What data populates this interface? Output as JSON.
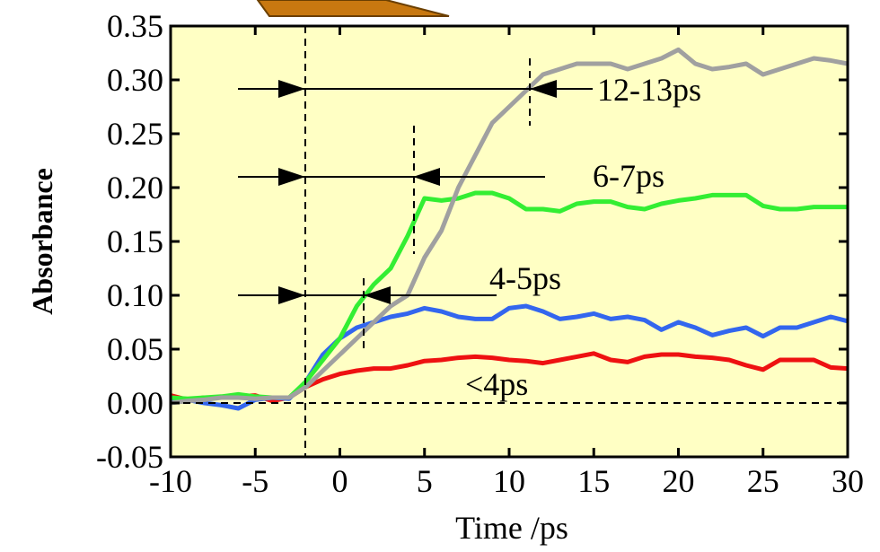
{
  "chart_data": {
    "type": "line",
    "x_label": "Time /ps",
    "y_label": "Absorbance",
    "annotations": [
      "12-13ps",
      "6-7ps",
      "4-5ps",
      "<4ps"
    ],
    "x": [
      -10,
      -9,
      -8,
      -7,
      -6,
      -5,
      -4,
      -3,
      -2,
      -1,
      0,
      1,
      2,
      3,
      4,
      5,
      6,
      7,
      8,
      9,
      10,
      11,
      12,
      13,
      14,
      15,
      16,
      17,
      18,
      19,
      20,
      21,
      22,
      23,
      24,
      25,
      26,
      27,
      28,
      29,
      30
    ],
    "series": [
      {
        "color": "#a0a0a0",
        "values": [
          0.0,
          0.002,
          0.003,
          0.005,
          0.005,
          0.004,
          0.005,
          0.005,
          0.015,
          0.03,
          0.045,
          0.06,
          0.075,
          0.09,
          0.1,
          0.135,
          0.16,
          0.2,
          0.23,
          0.26,
          0.275,
          0.29,
          0.305,
          0.31,
          0.315,
          0.315,
          0.315,
          0.31,
          0.315,
          0.32,
          0.328,
          0.315,
          0.31,
          0.312,
          0.315,
          0.305,
          0.31,
          0.315,
          0.32,
          0.318,
          0.315
        ]
      },
      {
        "color": "#33ee33",
        "values": [
          0.005,
          0.004,
          0.005,
          0.006,
          0.008,
          0.006,
          0.005,
          0.005,
          0.02,
          0.04,
          0.06,
          0.09,
          0.11,
          0.125,
          0.155,
          0.19,
          0.188,
          0.19,
          0.195,
          0.195,
          0.19,
          0.18,
          0.18,
          0.178,
          0.185,
          0.187,
          0.187,
          0.182,
          0.18,
          0.185,
          0.188,
          0.19,
          0.193,
          0.193,
          0.193,
          0.183,
          0.18,
          0.18,
          0.182,
          0.182,
          0.182
        ]
      },
      {
        "color": "#3366ee",
        "values": [
          0.003,
          0.003,
          0.0,
          -0.002,
          -0.005,
          0.003,
          0.005,
          0.004,
          0.02,
          0.045,
          0.06,
          0.07,
          0.075,
          0.08,
          0.083,
          0.088,
          0.085,
          0.08,
          0.078,
          0.078,
          0.088,
          0.09,
          0.085,
          0.078,
          0.08,
          0.083,
          0.078,
          0.08,
          0.077,
          0.068,
          0.075,
          0.07,
          0.063,
          0.067,
          0.07,
          0.062,
          0.07,
          0.07,
          0.075,
          0.08,
          0.076
        ]
      },
      {
        "color": "#ee1111",
        "values": [
          0.007,
          0.003,
          0.005,
          0.005,
          0.006,
          0.007,
          0.002,
          0.005,
          0.015,
          0.022,
          0.027,
          0.03,
          0.032,
          0.032,
          0.035,
          0.039,
          0.04,
          0.042,
          0.043,
          0.042,
          0.04,
          0.039,
          0.037,
          0.04,
          0.043,
          0.046,
          0.04,
          0.038,
          0.043,
          0.045,
          0.045,
          0.043,
          0.042,
          0.04,
          0.035,
          0.031,
          0.04,
          0.04,
          0.04,
          0.033,
          0.032
        ]
      }
    ],
    "xlim": [
      -10,
      30
    ],
    "xticks": [
      -10,
      -5,
      0,
      5,
      10,
      15,
      20,
      25,
      30
    ],
    "ylim": [
      -0.05,
      0.35
    ],
    "yticks": [
      -0.05,
      {
        "value": 0.0,
        "label": "0.00"
      },
      0.05,
      {
        "value": 0.1,
        "label": "0.10"
      },
      0.15,
      {
        "value": 0.2,
        "label": "0.20"
      },
      0.25,
      {
        "value": 0.3,
        "label": "0.30"
      },
      0.35
    ],
    "background": "#ffffc4"
  }
}
